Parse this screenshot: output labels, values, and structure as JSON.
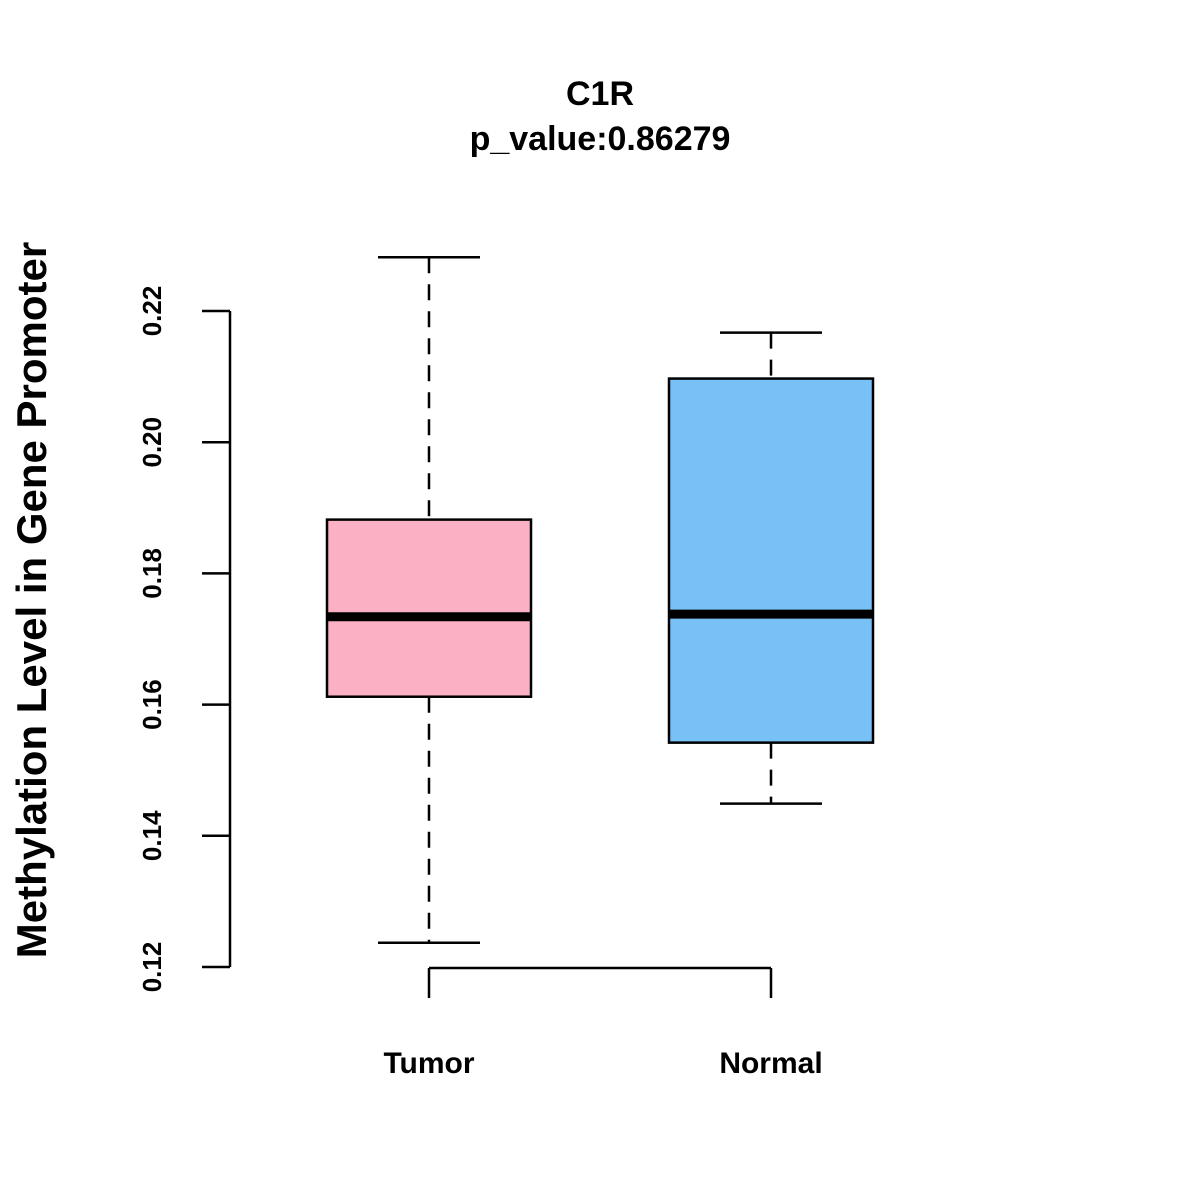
{
  "chart_data": {
    "type": "boxplot",
    "title": "C1R",
    "subtitle": "p_value:0.86279",
    "xlabel": "",
    "ylabel": "Methylation Level in Gene Promoter",
    "ylim": [
      0.12,
      0.22
    ],
    "yticks": [
      0.12,
      0.14,
      0.16,
      0.18,
      0.2,
      0.22
    ],
    "ytick_labels": [
      "0.12",
      "0.14",
      "0.16",
      "0.18",
      "0.20",
      "0.22"
    ],
    "categories": [
      "Tumor",
      "Normal"
    ],
    "boxes": [
      {
        "name": "Tumor",
        "color": "#FBB1C3",
        "whisker_low": 0.1237,
        "q1": 0.1612,
        "median": 0.1734,
        "q3": 0.1882,
        "whisker_high": 0.2282
      },
      {
        "name": "Normal",
        "color": "#78C1F7",
        "whisker_low": 0.1449,
        "q1": 0.1542,
        "median": 0.1738,
        "q3": 0.2097,
        "whisker_high": 0.2167
      }
    ],
    "grid": false,
    "legend": "none"
  }
}
